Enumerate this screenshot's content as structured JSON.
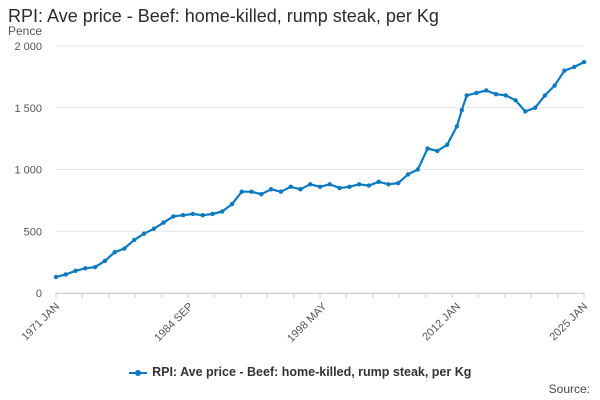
{
  "title": "RPI: Ave price - Beef: home-killed, rump steak, per Kg",
  "unit_label": "Pence",
  "source_label": "Source:",
  "colors": {
    "series": "#0b7abf",
    "grid": "#e6e6e6",
    "text": "#555555"
  },
  "chart_data": {
    "type": "line",
    "title": "RPI: Ave price - Beef: home-killed, rump steak, per Kg",
    "ylabel": "Pence",
    "xlabel": "",
    "ylim": [
      0,
      2000
    ],
    "y_ticks": [
      0,
      500,
      1000,
      1500,
      2000
    ],
    "y_tick_labels": [
      "0",
      "500",
      "1 000",
      "1 500",
      "2 000"
    ],
    "x_tick_labels": [
      "1971 JAN",
      "1984 SEP",
      "1998 MAY",
      "2012 JAN",
      "2025 JAN"
    ],
    "x_tick_positions": [
      1971.0,
      1984.67,
      1998.33,
      2012.0,
      2025.0
    ],
    "xlim": [
      1971.0,
      2025.0
    ],
    "grid": true,
    "legend_position": "bottom",
    "series": [
      {
        "name": "RPI: Ave price - Beef: home-killed, rump steak, per Kg",
        "color": "#0b7abf",
        "points": [
          [
            1971.0,
            130
          ],
          [
            1972.0,
            150
          ],
          [
            1973.0,
            180
          ],
          [
            1974.0,
            200
          ],
          [
            1975.0,
            210
          ],
          [
            1976.0,
            260
          ],
          [
            1977.0,
            330
          ],
          [
            1978.0,
            360
          ],
          [
            1979.0,
            430
          ],
          [
            1980.0,
            480
          ],
          [
            1981.0,
            520
          ],
          [
            1982.0,
            570
          ],
          [
            1983.0,
            620
          ],
          [
            1984.0,
            630
          ],
          [
            1985.0,
            640
          ],
          [
            1986.0,
            630
          ],
          [
            1987.0,
            640
          ],
          [
            1988.0,
            660
          ],
          [
            1989.0,
            720
          ],
          [
            1990.0,
            820
          ],
          [
            1991.0,
            820
          ],
          [
            1992.0,
            800
          ],
          [
            1993.0,
            840
          ],
          [
            1994.0,
            820
          ],
          [
            1995.0,
            860
          ],
          [
            1996.0,
            840
          ],
          [
            1997.0,
            880
          ],
          [
            1998.0,
            860
          ],
          [
            1999.0,
            880
          ],
          [
            2000.0,
            850
          ],
          [
            2001.0,
            860
          ],
          [
            2002.0,
            880
          ],
          [
            2003.0,
            870
          ],
          [
            2004.0,
            900
          ],
          [
            2005.0,
            880
          ],
          [
            2006.0,
            890
          ],
          [
            2007.0,
            960
          ],
          [
            2008.0,
            1000
          ],
          [
            2009.0,
            1170
          ],
          [
            2010.0,
            1150
          ],
          [
            2011.0,
            1200
          ],
          [
            2012.0,
            1350
          ],
          [
            2012.5,
            1480
          ],
          [
            2013.0,
            1600
          ],
          [
            2014.0,
            1620
          ],
          [
            2015.0,
            1640
          ],
          [
            2016.0,
            1610
          ],
          [
            2017.0,
            1600
          ],
          [
            2018.0,
            1560
          ],
          [
            2019.0,
            1470
          ],
          [
            2020.0,
            1500
          ],
          [
            2021.0,
            1600
          ],
          [
            2022.0,
            1680
          ],
          [
            2023.0,
            1800
          ],
          [
            2024.0,
            1830
          ],
          [
            2025.0,
            1870
          ]
        ]
      }
    ]
  }
}
